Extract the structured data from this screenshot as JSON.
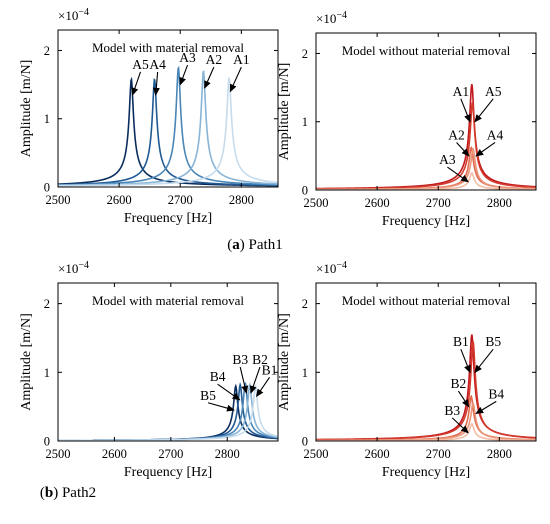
{
  "captions": [
    {
      "letter": "a",
      "text": "Path1"
    },
    {
      "letter": "b",
      "text": "Path2"
    }
  ],
  "colors": {
    "blue_series": [
      "#0b2d5e",
      "#1f5a93",
      "#4a86b8",
      "#88b4d6",
      "#c6dced"
    ],
    "red_series": [
      "#c0181d",
      "#d33a2c",
      "#df6a50",
      "#ea9478",
      "#f3bda6"
    ]
  },
  "chart_data": [
    {
      "type": "line",
      "title": "Model with material removal",
      "xlabel": "Frequency [Hz]",
      "ylabel": "Amplitude [m/N]",
      "multiplier": "×10",
      "multiplier_exp": "−4",
      "xlim": [
        2500,
        2860
      ],
      "ylim": [
        0,
        2.3
      ],
      "xticks": [
        2500,
        2600,
        2700,
        2800
      ],
      "yticks": [
        0,
        1,
        2
      ],
      "damping": 0.0012,
      "series": [
        {
          "label": "A1",
          "f0": 2780,
          "peak": 1.6
        },
        {
          "label": "A2",
          "f0": 2738,
          "peak": 1.7
        },
        {
          "label": "A3",
          "f0": 2697,
          "peak": 1.75
        },
        {
          "label": "A4",
          "f0": 2658,
          "peak": 1.58
        },
        {
          "label": "A5",
          "f0": 2620,
          "peak": 1.58
        }
      ],
      "annotations": [
        {
          "text": "A1",
          "x": 2800,
          "y": 1.8,
          "tx": 2782,
          "ty": 1.4
        },
        {
          "text": "A2",
          "x": 2755,
          "y": 1.8,
          "tx": 2740,
          "ty": 1.45
        },
        {
          "text": "A3",
          "x": 2712,
          "y": 1.83,
          "tx": 2700,
          "ty": 1.5
        },
        {
          "text": "A4",
          "x": 2663,
          "y": 1.73,
          "tx": 2660,
          "ty": 1.35
        },
        {
          "text": "A5",
          "x": 2635,
          "y": 1.73,
          "tx": 2622,
          "ty": 1.35
        }
      ]
    },
    {
      "type": "line",
      "title": "Model without  material removal",
      "xlabel": "Frequency [Hz]",
      "ylabel": "Amplitude [m/N]",
      "multiplier": "×10",
      "multiplier_exp": "−4",
      "xlim": [
        2500,
        2860
      ],
      "ylim": [
        0,
        2.3
      ],
      "xticks": [
        2500,
        2600,
        2700,
        2800
      ],
      "yticks": [
        0,
        1,
        2
      ],
      "damping": 0.0012,
      "series": [
        {
          "label": "A1",
          "f0": 2755,
          "peak": 1.55
        },
        {
          "label": "A5",
          "f0": 2756,
          "peak": 1.28
        },
        {
          "label": "A2",
          "f0": 2754,
          "peak": 0.62
        },
        {
          "label": "A4",
          "f0": 2757,
          "peak": 0.6
        },
        {
          "label": "A3",
          "f0": 2755,
          "peak": 0.25
        }
      ],
      "annotations": [
        {
          "text": "A1",
          "x": 2737,
          "y": 1.38,
          "tx": 2752,
          "ty": 1.0
        },
        {
          "text": "A5",
          "x": 2790,
          "y": 1.38,
          "tx": 2760,
          "ty": 1.0
        },
        {
          "text": "A2",
          "x": 2730,
          "y": 0.74,
          "tx": 2750,
          "ty": 0.5
        },
        {
          "text": "A4",
          "x": 2793,
          "y": 0.74,
          "tx": 2762,
          "ty": 0.5
        },
        {
          "text": "A3",
          "x": 2715,
          "y": 0.38,
          "tx": 2749,
          "ty": 0.12
        }
      ]
    },
    {
      "type": "line",
      "title": "Model with  material removal",
      "xlabel": "Frequency [Hz]",
      "ylabel": "Amplitude [m/N]",
      "multiplier": "×10",
      "multiplier_exp": "−4",
      "xlim": [
        2500,
        2890
      ],
      "ylim": [
        0,
        2.3
      ],
      "xticks": [
        2500,
        2600,
        2700,
        2800
      ],
      "yticks": [
        0,
        1,
        2
      ],
      "damping": 0.0012,
      "series": [
        {
          "label": "B1",
          "f0": 2850,
          "peak": 0.8
        },
        {
          "label": "B2",
          "f0": 2840,
          "peak": 0.82
        },
        {
          "label": "B3",
          "f0": 2832,
          "peak": 0.84
        },
        {
          "label": "B4",
          "f0": 2823,
          "peak": 0.82
        },
        {
          "label": "B5",
          "f0": 2815,
          "peak": 0.8
        }
      ],
      "annotations": [
        {
          "text": "B1",
          "x": 2875,
          "y": 0.97,
          "tx": 2852,
          "ty": 0.65
        },
        {
          "text": "B2",
          "x": 2858,
          "y": 1.12,
          "tx": 2842,
          "ty": 0.7
        },
        {
          "text": "B3",
          "x": 2823,
          "y": 1.12,
          "tx": 2834,
          "ty": 0.7
        },
        {
          "text": "B4",
          "x": 2783,
          "y": 0.87,
          "tx": 2822,
          "ty": 0.6
        },
        {
          "text": "B5",
          "x": 2766,
          "y": 0.6,
          "tx": 2812,
          "ty": 0.45
        }
      ]
    },
    {
      "type": "line",
      "title": "Model without  material removal",
      "xlabel": "Frequency [Hz]",
      "ylabel": "Amplitude [m/N]",
      "multiplier": "×10",
      "multiplier_exp": "−4",
      "xlim": [
        2500,
        2860
      ],
      "ylim": [
        0,
        2.3
      ],
      "xticks": [
        2500,
        2600,
        2700,
        2800
      ],
      "yticks": [
        0,
        1,
        2
      ],
      "damping": 0.0012,
      "series": [
        {
          "label": "B1",
          "f0": 2755,
          "peak": 1.55
        },
        {
          "label": "B5",
          "f0": 2757,
          "peak": 1.45
        },
        {
          "label": "B2",
          "f0": 2754,
          "peak": 0.65
        },
        {
          "label": "B4",
          "f0": 2757,
          "peak": 0.55
        },
        {
          "label": "B3",
          "f0": 2755,
          "peak": 0.25
        }
      ],
      "annotations": [
        {
          "text": "B1",
          "x": 2737,
          "y": 1.38,
          "tx": 2752,
          "ty": 1.0
        },
        {
          "text": "B5",
          "x": 2790,
          "y": 1.38,
          "tx": 2760,
          "ty": 1.0
        },
        {
          "text": "B2",
          "x": 2733,
          "y": 0.77,
          "tx": 2750,
          "ty": 0.5
        },
        {
          "text": "B4",
          "x": 2795,
          "y": 0.62,
          "tx": 2762,
          "ty": 0.4
        },
        {
          "text": "B3",
          "x": 2723,
          "y": 0.38,
          "tx": 2749,
          "ty": 0.12
        }
      ]
    }
  ]
}
